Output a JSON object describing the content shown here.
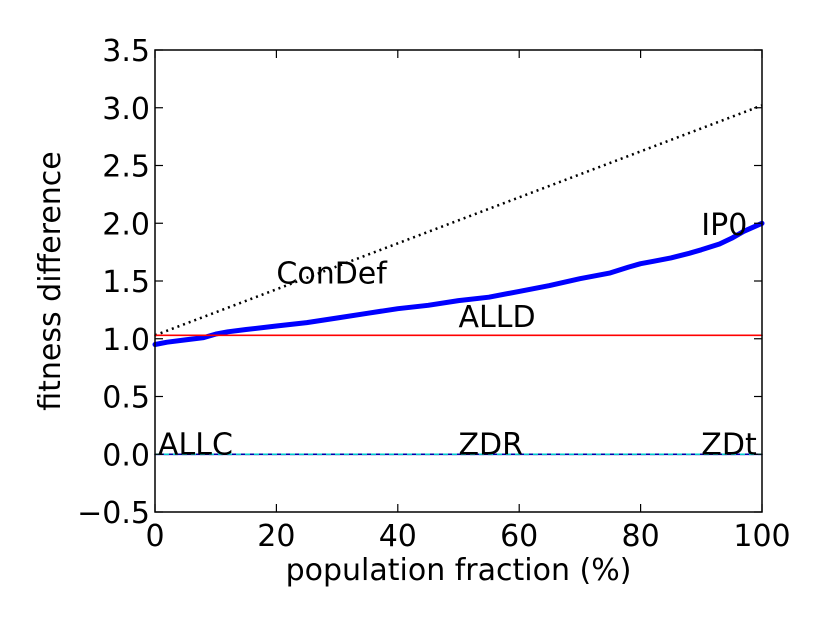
{
  "chart_data": {
    "type": "line",
    "title": "",
    "xlabel": "population fraction (%)",
    "ylabel": "fitness difference",
    "xlim": [
      0,
      100
    ],
    "ylim": [
      -0.5,
      3.5
    ],
    "x_ticks": [
      0,
      20,
      40,
      60,
      80,
      100
    ],
    "y_ticks": [
      -0.5,
      0.0,
      0.5,
      1.0,
      1.5,
      2.0,
      2.5,
      3.0,
      3.5
    ],
    "x_tick_labels": [
      "0",
      "20",
      "40",
      "60",
      "80",
      "100"
    ],
    "y_tick_labels": [
      "−0.5",
      "0.0",
      "0.5",
      "1.0",
      "1.5",
      "2.0",
      "2.5",
      "3.0",
      "3.5"
    ],
    "grid": false,
    "series": [
      {
        "name": "ConDef",
        "color": "#000000",
        "style": "dotted",
        "x": [
          0,
          100
        ],
        "y": [
          1.03,
          3.02
        ]
      },
      {
        "name": "IP0",
        "color": "#0000ff",
        "style": "solid-thick",
        "x": [
          0,
          2,
          5,
          8,
          10,
          12,
          15,
          20,
          25,
          30,
          35,
          40,
          45,
          50,
          55,
          60,
          65,
          70,
          75,
          78,
          80,
          82,
          85,
          88,
          90,
          93,
          95,
          97,
          100
        ],
        "y": [
          0.95,
          0.97,
          0.99,
          1.01,
          1.04,
          1.06,
          1.08,
          1.11,
          1.14,
          1.18,
          1.22,
          1.26,
          1.29,
          1.33,
          1.36,
          1.41,
          1.46,
          1.52,
          1.57,
          1.62,
          1.65,
          1.67,
          1.7,
          1.74,
          1.77,
          1.82,
          1.87,
          1.93,
          2.0
        ]
      },
      {
        "name": "ALLD",
        "color": "#ff0000",
        "style": "solid",
        "x": [
          0,
          100
        ],
        "y": [
          1.03,
          1.03
        ]
      },
      {
        "name": "ALLC",
        "color": "#0000aa",
        "style": "solid",
        "x": [
          0,
          100
        ],
        "y": [
          0.0,
          0.0
        ]
      },
      {
        "name": "ZDR",
        "color": "#ff00ff",
        "style": "dashed",
        "x": [
          0,
          100
        ],
        "y": [
          0.0,
          0.0
        ]
      },
      {
        "name": "ZDt",
        "color": "#00cccc",
        "style": "dashed",
        "x": [
          0,
          100
        ],
        "y": [
          0.0,
          0.0
        ]
      }
    ],
    "annotations": [
      {
        "text": "ConDef",
        "x": 20,
        "y": 1.48
      },
      {
        "text": "IP0",
        "x": 90,
        "y": 1.9
      },
      {
        "text": "ALLD",
        "x": 50,
        "y": 1.1
      },
      {
        "text": "ALLC",
        "x": 0.5,
        "y": 0.0
      },
      {
        "text": "ZDR",
        "x": 50,
        "y": 0.0
      },
      {
        "text": "ZDt",
        "x": 90,
        "y": 0.0
      }
    ]
  }
}
